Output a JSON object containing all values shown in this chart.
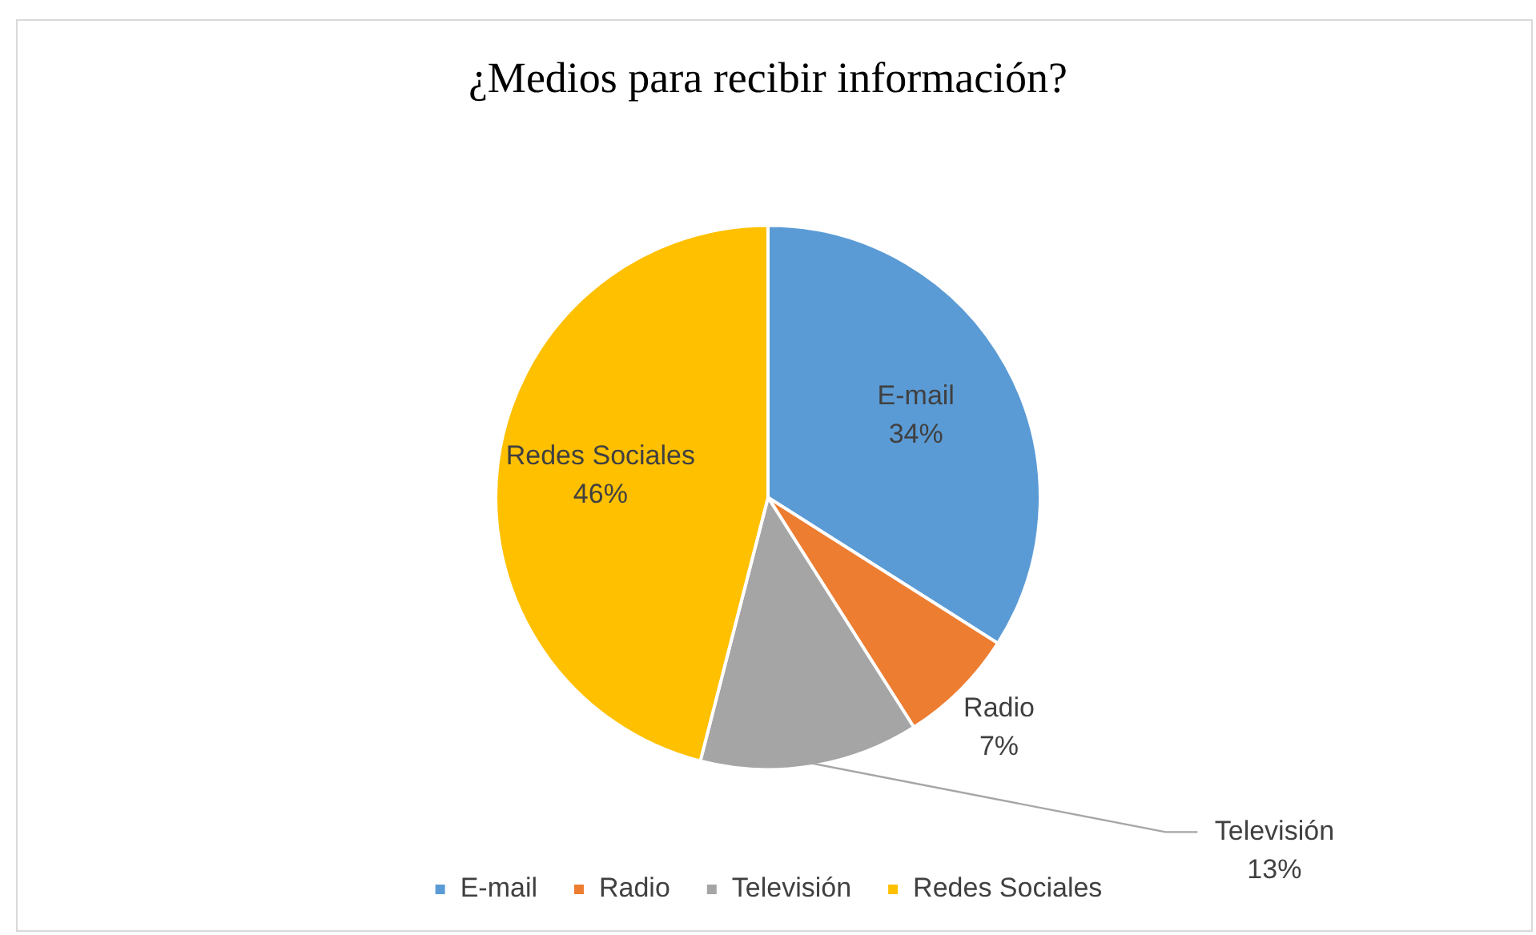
{
  "chart_data": {
    "type": "pie",
    "title": "¿Medios para recibir información?",
    "categories": [
      "E-mail",
      "Radio",
      "Televisión",
      "Redes Sociales"
    ],
    "values": [
      34,
      7,
      13,
      46
    ],
    "colors": [
      "#5b9bd5",
      "#ed7d31",
      "#a5a5a5",
      "#ffc000"
    ],
    "value_labels": [
      "34%",
      "7%",
      "13%",
      "46%"
    ],
    "legend": "bottom"
  }
}
